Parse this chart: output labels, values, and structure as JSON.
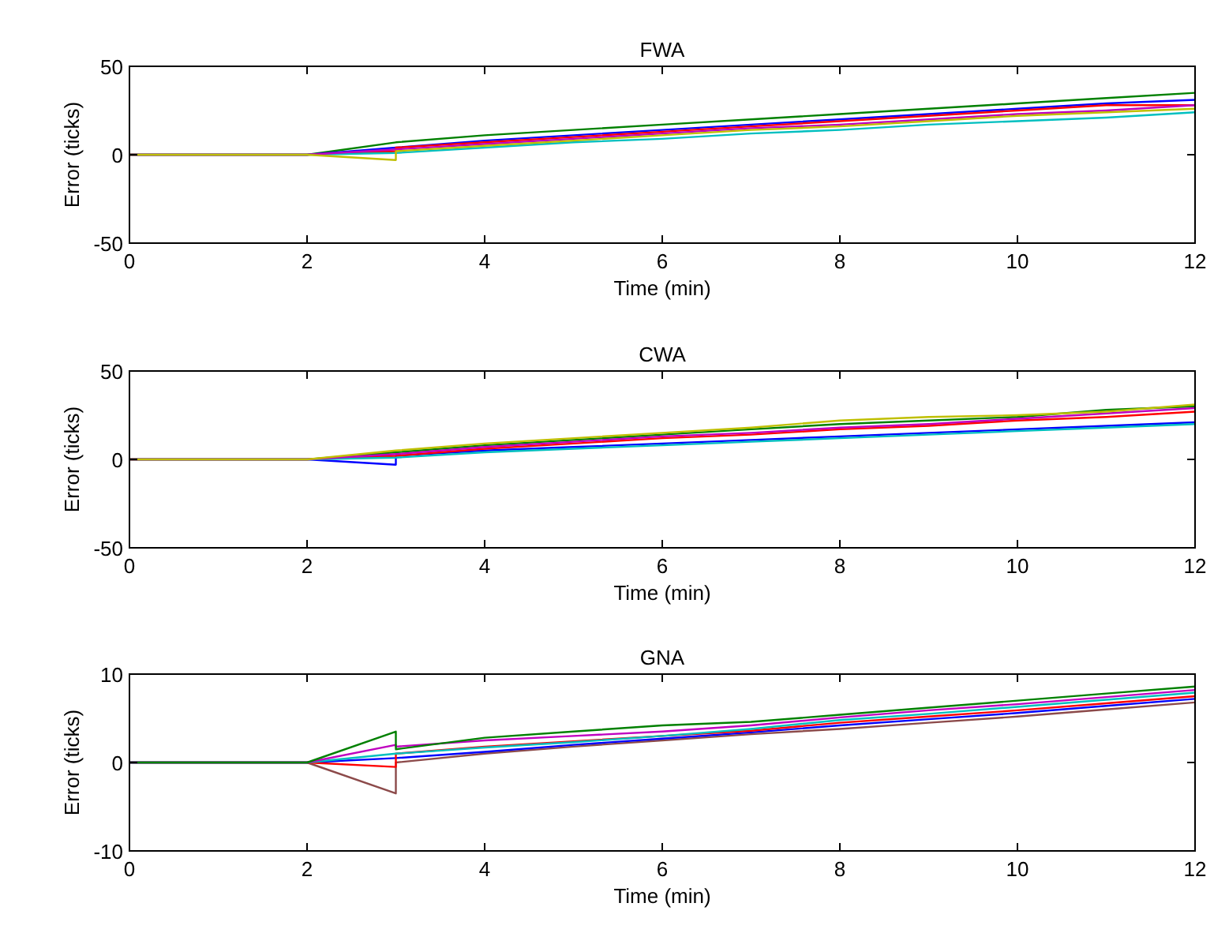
{
  "chart_data": [
    {
      "type": "line",
      "title": "FWA",
      "xlabel": "Time (min)",
      "ylabel": "Error (ticks)",
      "xlim": [
        0,
        12
      ],
      "xticks": [
        0,
        2,
        4,
        6,
        8,
        10,
        12
      ],
      "ylim": [
        -50,
        50
      ],
      "yticks": [
        -50,
        0,
        50
      ],
      "x": [
        0,
        2,
        3,
        3,
        4,
        5,
        6,
        7,
        8,
        9,
        10,
        11,
        12
      ],
      "series": [
        {
          "color": "#008000",
          "values": [
            0,
            0,
            7,
            7,
            11,
            14,
            17,
            20,
            23,
            26,
            29,
            32,
            35
          ]
        },
        {
          "color": "#0000ff",
          "values": [
            0,
            0,
            4,
            4,
            8,
            11,
            14,
            17,
            20,
            23,
            26,
            29,
            31
          ]
        },
        {
          "color": "#ff0000",
          "values": [
            0,
            0,
            2,
            4,
            7,
            10,
            13,
            16,
            19,
            22,
            25,
            28,
            28
          ]
        },
        {
          "color": "#00bfbf",
          "values": [
            0,
            0,
            1,
            1,
            4,
            7,
            9,
            12,
            14,
            17,
            19,
            21,
            24
          ]
        },
        {
          "color": "#bf00bf",
          "values": [
            0,
            0,
            3,
            3,
            6,
            9,
            12,
            15,
            17,
            20,
            23,
            25,
            28
          ]
        },
        {
          "color": "#bfbf00",
          "values": [
            0,
            0,
            -3,
            2,
            5,
            8,
            11,
            14,
            16,
            19,
            22,
            24,
            26
          ]
        }
      ]
    },
    {
      "type": "line",
      "title": "CWA",
      "xlabel": "Time (min)",
      "ylabel": "Error (ticks)",
      "xlim": [
        0,
        12
      ],
      "xticks": [
        0,
        2,
        4,
        6,
        8,
        10,
        12
      ],
      "ylim": [
        -50,
        50
      ],
      "yticks": [
        -50,
        0,
        50
      ],
      "x": [
        0,
        2,
        3,
        3,
        4,
        5,
        6,
        7,
        8,
        9,
        10,
        11,
        12
      ],
      "series": [
        {
          "color": "#008000",
          "values": [
            0,
            0,
            4,
            4,
            8,
            11,
            14,
            17,
            20,
            22,
            24,
            28,
            30
          ]
        },
        {
          "color": "#0000ff",
          "values": [
            0,
            0,
            -3,
            2,
            5,
            7,
            9,
            11,
            13,
            15,
            17,
            19,
            21
          ]
        },
        {
          "color": "#ff0000",
          "values": [
            0,
            0,
            2,
            2,
            6,
            9,
            12,
            14,
            17,
            19,
            22,
            24,
            27
          ]
        },
        {
          "color": "#00bfbf",
          "values": [
            0,
            0,
            1,
            1,
            4,
            6,
            8,
            10,
            12,
            14,
            16,
            18,
            20
          ]
        },
        {
          "color": "#bf00bf",
          "values": [
            0,
            0,
            3,
            3,
            7,
            10,
            13,
            15,
            18,
            20,
            23,
            26,
            29
          ]
        },
        {
          "color": "#bfbf00",
          "values": [
            0,
            0,
            5,
            5,
            9,
            12,
            15,
            18,
            22,
            24,
            25,
            27,
            31
          ]
        }
      ]
    },
    {
      "type": "line",
      "title": "GNA",
      "xlabel": "Time (min)",
      "ylabel": "Error (ticks)",
      "xlim": [
        0,
        12
      ],
      "xticks": [
        0,
        2,
        4,
        6,
        8,
        10,
        12
      ],
      "ylim": [
        -10,
        10
      ],
      "yticks": [
        -10,
        0,
        10
      ],
      "x": [
        0,
        2,
        3,
        3,
        4,
        5,
        6,
        7,
        8,
        9,
        10,
        11,
        12
      ],
      "series": [
        {
          "color": "#8c4a4a",
          "values": [
            0,
            0,
            -3.5,
            0,
            1,
            1.8,
            2.5,
            3.2,
            3.8,
            4.5,
            5.2,
            6,
            6.8
          ]
        },
        {
          "color": "#0000ff",
          "values": [
            0,
            0,
            0.5,
            0.5,
            1.2,
            2,
            2.7,
            3.4,
            4.2,
            4.9,
            5.6,
            6.4,
            7.2
          ]
        },
        {
          "color": "#ff0000",
          "values": [
            0,
            0,
            -0.5,
            1,
            1.8,
            2.4,
            3,
            3.6,
            4.5,
            5.2,
            5.9,
            6.7,
            7.5
          ]
        },
        {
          "color": "#00bfbf",
          "values": [
            0,
            0,
            1,
            1,
            1.7,
            2.3,
            3,
            3.8,
            4.8,
            5.5,
            6.3,
            7.1,
            7.9
          ]
        },
        {
          "color": "#bf00bf",
          "values": [
            0,
            0,
            2,
            1.8,
            2.5,
            3,
            3.5,
            4.2,
            5.1,
            5.9,
            6.6,
            7.4,
            8.2
          ]
        },
        {
          "color": "#008000",
          "values": [
            0,
            0,
            3.5,
            1.5,
            2.8,
            3.5,
            4.2,
            4.6,
            5.4,
            6.2,
            7,
            7.8,
            8.6
          ]
        }
      ]
    }
  ]
}
